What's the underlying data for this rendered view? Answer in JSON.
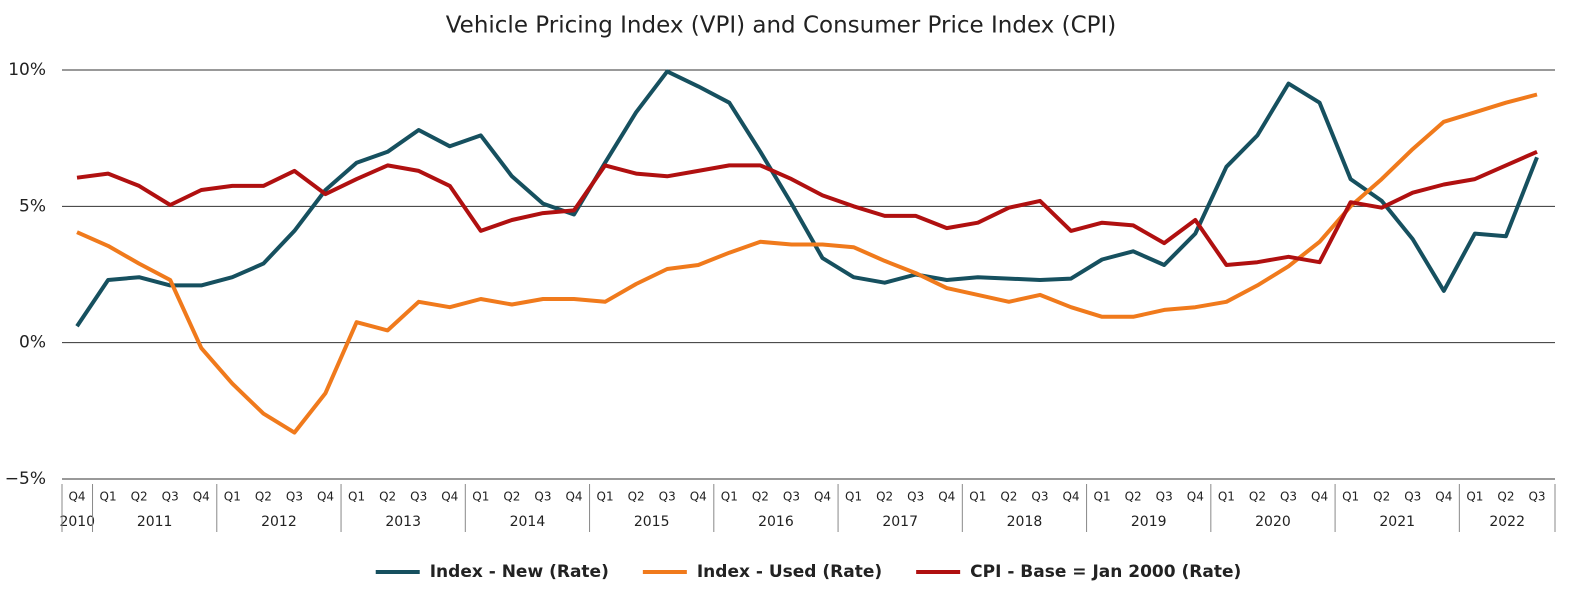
{
  "chart_data": {
    "type": "line",
    "title": "Vehicle Pricing Index (VPI) and Consumer Price Index (CPI)",
    "categories": [
      "Q4",
      "Q1",
      "Q2",
      "Q3",
      "Q4",
      "Q1",
      "Q2",
      "Q3",
      "Q4",
      "Q1",
      "Q2",
      "Q3",
      "Q4",
      "Q1",
      "Q2",
      "Q3",
      "Q4",
      "Q1",
      "Q2",
      "Q3",
      "Q4",
      "Q1",
      "Q2",
      "Q3",
      "Q4",
      "Q1",
      "Q2",
      "Q3",
      "Q4",
      "Q1",
      "Q2",
      "Q3",
      "Q4",
      "Q1",
      "Q2",
      "Q3",
      "Q4",
      "Q1",
      "Q2",
      "Q3",
      "Q4",
      "Q1",
      "Q2",
      "Q3",
      "Q4",
      "Q1",
      "Q2",
      "Q3"
    ],
    "years": [
      "2010",
      "2011",
      "2012",
      "2013",
      "2014",
      "2015",
      "2016",
      "2017",
      "2018",
      "2019",
      "2020",
      "2021",
      "2022"
    ],
    "series": [
      {
        "name": "Index - New (Rate)",
        "color": "#16505f",
        "values": [
          0.6,
          2.3,
          2.4,
          2.1,
          2.1,
          2.4,
          2.9,
          4.1,
          5.6,
          6.6,
          7.0,
          7.8,
          7.2,
          7.6,
          6.1,
          5.1,
          4.7,
          6.6,
          8.45,
          9.95,
          9.4,
          8.8,
          7.0,
          5.1,
          3.1,
          2.4,
          2.2,
          2.5,
          2.3,
          2.4,
          2.35,
          2.3,
          2.35,
          3.05,
          3.35,
          2.85,
          4.0,
          6.45,
          7.6,
          9.5,
          8.8,
          6.0,
          5.2,
          3.8,
          1.9,
          4.0,
          3.9,
          6.8
        ]
      },
      {
        "name": "Index - Used (Rate)",
        "color": "#f07a1c",
        "values": [
          4.05,
          3.55,
          2.9,
          2.3,
          -0.2,
          -1.5,
          -2.6,
          -3.3,
          -1.85,
          0.75,
          0.45,
          1.5,
          1.3,
          1.6,
          1.4,
          1.6,
          1.6,
          1.5,
          2.15,
          2.7,
          2.85,
          3.3,
          3.7,
          3.6,
          3.6,
          3.5,
          3.0,
          2.55,
          2.0,
          1.75,
          1.5,
          1.75,
          1.3,
          0.95,
          0.95,
          1.2,
          1.3,
          1.5,
          2.1,
          2.8,
          3.7,
          5.0,
          6.0,
          7.1,
          8.1,
          8.45,
          8.8,
          9.1
        ]
      },
      {
        "name": "CPI - Base = Jan 2000 (Rate)",
        "color": "#b01010",
        "values": [
          6.05,
          6.2,
          5.75,
          5.05,
          5.6,
          5.75,
          5.75,
          6.3,
          5.45,
          6.0,
          6.5,
          6.3,
          5.75,
          4.1,
          4.5,
          4.75,
          4.85,
          6.5,
          6.2,
          6.1,
          6.3,
          6.5,
          6.5,
          6.0,
          5.4,
          5.0,
          4.65,
          4.65,
          4.2,
          4.4,
          4.95,
          5.2,
          4.1,
          4.4,
          4.3,
          3.65,
          4.5,
          2.85,
          2.95,
          3.15,
          2.95,
          5.15,
          4.95,
          5.5,
          5.8,
          6.0,
          6.5,
          7.0
        ]
      }
    ],
    "ylim": [
      -5,
      10
    ],
    "yticks": [
      {
        "value": -5,
        "label": "−5%"
      },
      {
        "value": 0,
        "label": "0%"
      },
      {
        "value": 5,
        "label": "5%"
      },
      {
        "value": 10,
        "label": "10%"
      }
    ],
    "grid": true,
    "legend": "bottom"
  }
}
